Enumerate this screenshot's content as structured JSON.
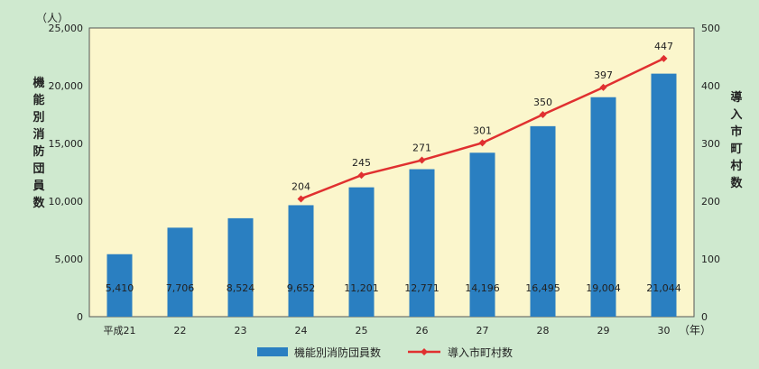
{
  "chart_data": {
    "type": "bar",
    "categories": [
      "平成21",
      "22",
      "23",
      "24",
      "25",
      "26",
      "27",
      "28",
      "29",
      "30"
    ],
    "series": [
      {
        "name": "機能別消防団員数",
        "type": "bar",
        "axis": "left",
        "color": "#2a7fc1",
        "values": [
          5410,
          7706,
          8524,
          9652,
          11201,
          12771,
          14196,
          16495,
          19004,
          21044
        ],
        "labels": [
          "5,410",
          "7,706",
          "8,524",
          "9,652",
          "11,201",
          "12,771",
          "14,196",
          "16,495",
          "19,004",
          "21,044"
        ]
      },
      {
        "name": "導入市町村数",
        "type": "line",
        "axis": "right",
        "color": "#e03030",
        "values": [
          null,
          null,
          null,
          204,
          245,
          271,
          301,
          350,
          397,
          447
        ],
        "labels": [
          "",
          "",
          "",
          "204",
          "245",
          "271",
          "301",
          "350",
          "397",
          "447"
        ]
      }
    ],
    "ylabel": "機能別消防団員数",
    "y2label": "導入市町村数",
    "yunit": "（人）",
    "xunit": "（年）",
    "ylim": [
      0,
      25000
    ],
    "y2lim": [
      0,
      500
    ],
    "yticks": [
      "0",
      "5,000",
      "10,000",
      "15,000",
      "20,000",
      "25,000"
    ],
    "y2ticks": [
      "0",
      "100",
      "200",
      "300",
      "400",
      "500"
    ],
    "legend_position": "bottom",
    "grid": false
  }
}
